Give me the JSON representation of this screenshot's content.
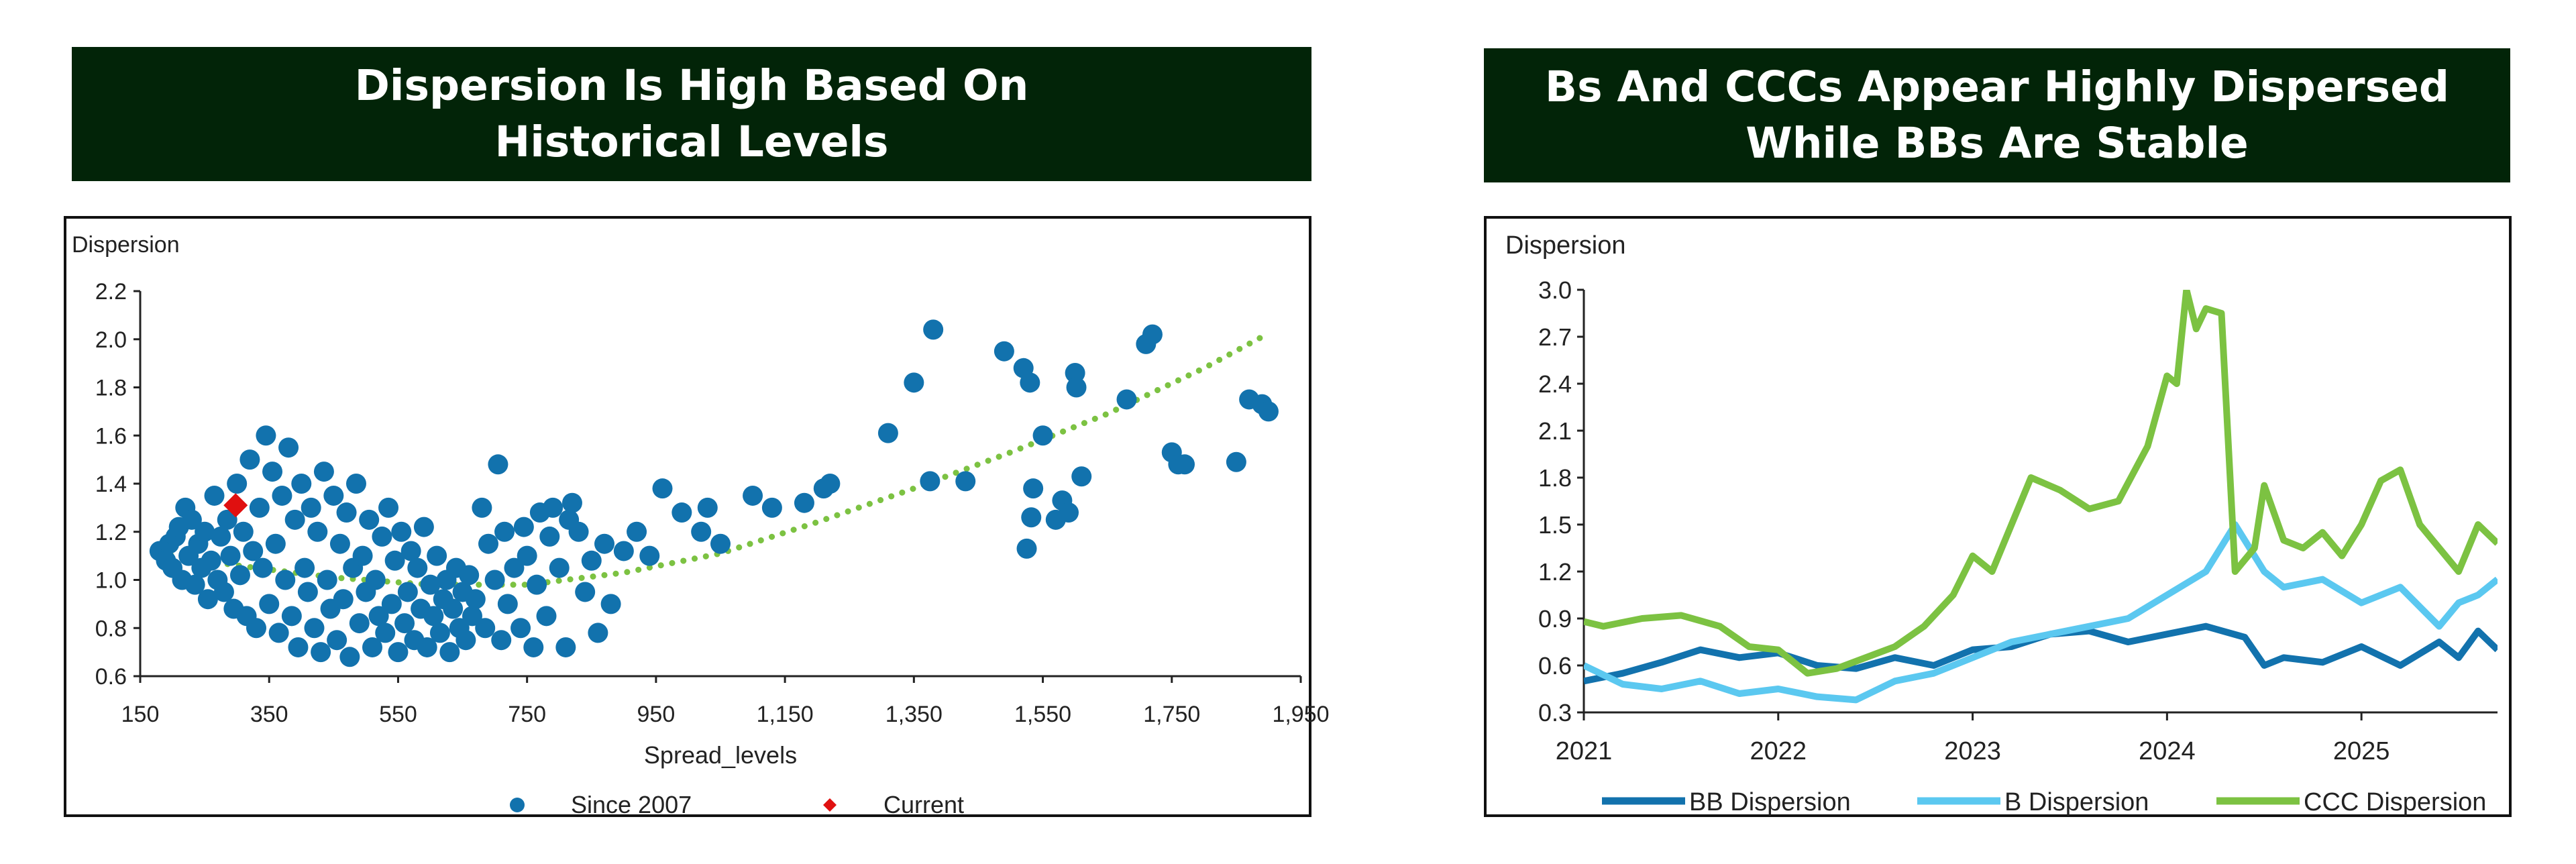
{
  "left_title": {
    "line1": "Dispersion Is High Based On",
    "line2": "Historical Levels"
  },
  "right_title": {
    "line1": "Bs And CCCs Appear Highly Dispersed",
    "line2": "While BBs Are Stable"
  },
  "colors": {
    "banner": "#022408",
    "scatter": "#1272ad",
    "current": "#e01010",
    "trend": "#7cc242",
    "bb": "#1272ad",
    "b": "#5bc8f0",
    "ccc": "#7cc242"
  },
  "chart_data": [
    {
      "type": "scatter",
      "title": "Dispersion Is High Based On Historical Levels",
      "ylabel": "Dispersion",
      "xlabel": "Spread_levels",
      "xlim": [
        150,
        1950
      ],
      "ylim": [
        0.6,
        2.2
      ],
      "xticks": [
        "150",
        "350",
        "550",
        "750",
        "950",
        "1,150",
        "1,350",
        "1,550",
        "1,750",
        "1,950"
      ],
      "yticks": [
        "0.6",
        "0.8",
        "1.0",
        "1.2",
        "1.4",
        "1.6",
        "1.8",
        "2.0",
        "2.2"
      ],
      "legend": [
        "Since 2007",
        "Current"
      ],
      "series": [
        {
          "name": "Since 2007",
          "points": [
            [
              180,
              1.12
            ],
            [
              190,
              1.08
            ],
            [
              195,
              1.15
            ],
            [
              200,
              1.05
            ],
            [
              205,
              1.18
            ],
            [
              210,
              1.22
            ],
            [
              215,
              1.0
            ],
            [
              220,
              1.3
            ],
            [
              225,
              1.1
            ],
            [
              230,
              1.25
            ],
            [
              235,
              0.98
            ],
            [
              240,
              1.15
            ],
            [
              245,
              1.05
            ],
            [
              250,
              1.2
            ],
            [
              255,
              0.92
            ],
            [
              260,
              1.08
            ],
            [
              265,
              1.35
            ],
            [
              270,
              1.0
            ],
            [
              275,
              1.18
            ],
            [
              280,
              0.95
            ],
            [
              285,
              1.25
            ],
            [
              290,
              1.1
            ],
            [
              295,
              0.88
            ],
            [
              300,
              1.4
            ],
            [
              305,
              1.02
            ],
            [
              310,
              1.2
            ],
            [
              315,
              0.85
            ],
            [
              320,
              1.5
            ],
            [
              325,
              1.12
            ],
            [
              330,
              0.8
            ],
            [
              335,
              1.3
            ],
            [
              340,
              1.05
            ],
            [
              345,
              1.6
            ],
            [
              350,
              0.9
            ],
            [
              355,
              1.45
            ],
            [
              360,
              1.15
            ],
            [
              365,
              0.78
            ],
            [
              370,
              1.35
            ],
            [
              375,
              1.0
            ],
            [
              380,
              1.55
            ],
            [
              385,
              0.85
            ],
            [
              390,
              1.25
            ],
            [
              395,
              0.72
            ],
            [
              400,
              1.4
            ],
            [
              405,
              1.05
            ],
            [
              410,
              0.95
            ],
            [
              415,
              1.3
            ],
            [
              420,
              0.8
            ],
            [
              425,
              1.2
            ],
            [
              430,
              0.7
            ],
            [
              435,
              1.45
            ],
            [
              440,
              1.0
            ],
            [
              445,
              0.88
            ],
            [
              450,
              1.35
            ],
            [
              455,
              0.75
            ],
            [
              460,
              1.15
            ],
            [
              465,
              0.92
            ],
            [
              470,
              1.28
            ],
            [
              475,
              0.68
            ],
            [
              480,
              1.05
            ],
            [
              485,
              1.4
            ],
            [
              490,
              0.82
            ],
            [
              495,
              1.1
            ],
            [
              500,
              0.95
            ],
            [
              505,
              1.25
            ],
            [
              510,
              0.72
            ],
            [
              515,
              1.0
            ],
            [
              520,
              0.85
            ],
            [
              525,
              1.18
            ],
            [
              530,
              0.78
            ],
            [
              535,
              1.3
            ],
            [
              540,
              0.9
            ],
            [
              545,
              1.08
            ],
            [
              550,
              0.7
            ],
            [
              555,
              1.2
            ],
            [
              560,
              0.82
            ],
            [
              565,
              0.95
            ],
            [
              570,
              1.12
            ],
            [
              575,
              0.75
            ],
            [
              580,
              1.05
            ],
            [
              585,
              0.88
            ],
            [
              590,
              1.22
            ],
            [
              595,
              0.72
            ],
            [
              600,
              0.98
            ],
            [
              605,
              0.85
            ],
            [
              610,
              1.1
            ],
            [
              615,
              0.78
            ],
            [
              620,
              0.92
            ],
            [
              625,
              1.0
            ],
            [
              630,
              0.7
            ],
            [
              635,
              0.88
            ],
            [
              640,
              1.05
            ],
            [
              645,
              0.8
            ],
            [
              650,
              0.95
            ],
            [
              655,
              0.75
            ],
            [
              660,
              1.02
            ],
            [
              665,
              0.85
            ],
            [
              670,
              0.92
            ],
            [
              680,
              1.3
            ],
            [
              685,
              0.8
            ],
            [
              690,
              1.15
            ],
            [
              700,
              1.0
            ],
            [
              705,
              1.48
            ],
            [
              710,
              0.75
            ],
            [
              715,
              1.2
            ],
            [
              720,
              0.9
            ],
            [
              730,
              1.05
            ],
            [
              740,
              0.8
            ],
            [
              745,
              1.22
            ],
            [
              750,
              1.1
            ],
            [
              760,
              0.72
            ],
            [
              765,
              0.98
            ],
            [
              770,
              1.28
            ],
            [
              780,
              0.85
            ],
            [
              785,
              1.18
            ],
            [
              790,
              1.3
            ],
            [
              800,
              1.05
            ],
            [
              810,
              0.72
            ],
            [
              815,
              1.25
            ],
            [
              820,
              1.32
            ],
            [
              830,
              1.2
            ],
            [
              840,
              0.95
            ],
            [
              850,
              1.08
            ],
            [
              860,
              0.78
            ],
            [
              870,
              1.15
            ],
            [
              880,
              0.9
            ],
            [
              900,
              1.12
            ],
            [
              920,
              1.2
            ],
            [
              940,
              1.1
            ],
            [
              960,
              1.38
            ],
            [
              990,
              1.28
            ],
            [
              1020,
              1.2
            ],
            [
              1030,
              1.3
            ],
            [
              1050,
              1.15
            ],
            [
              1100,
              1.35
            ],
            [
              1130,
              1.3
            ],
            [
              1180,
              1.32
            ],
            [
              1210,
              1.38
            ],
            [
              1220,
              1.4
            ],
            [
              1310,
              1.61
            ],
            [
              1350,
              1.82
            ],
            [
              1375,
              1.41
            ],
            [
              1380,
              2.04
            ],
            [
              1430,
              1.41
            ],
            [
              1490,
              1.95
            ],
            [
              1520,
              1.88
            ],
            [
              1525,
              1.13
            ],
            [
              1530,
              1.82
            ],
            [
              1532,
              1.26
            ],
            [
              1535,
              1.38
            ],
            [
              1550,
              1.6
            ],
            [
              1570,
              1.25
            ],
            [
              1580,
              1.33
            ],
            [
              1590,
              1.28
            ],
            [
              1600,
              1.86
            ],
            [
              1602,
              1.8
            ],
            [
              1610,
              1.43
            ],
            [
              1680,
              1.75
            ],
            [
              1710,
              1.98
            ],
            [
              1720,
              2.02
            ],
            [
              1750,
              1.53
            ],
            [
              1760,
              1.48
            ],
            [
              1770,
              1.48
            ],
            [
              1850,
              1.49
            ],
            [
              1870,
              1.75
            ],
            [
              1890,
              1.73
            ],
            [
              1900,
              1.7
            ]
          ]
        },
        {
          "name": "Current",
          "points": [
            [
              298,
              1.31
            ]
          ]
        }
      ],
      "trend": {
        "name": "Trend",
        "style": "dotted",
        "points": [
          [
            180,
            1.11
          ],
          [
            300,
            1.06
          ],
          [
            450,
            1.01
          ],
          [
            600,
            0.98
          ],
          [
            750,
            0.98
          ],
          [
            900,
            1.03
          ],
          [
            1050,
            1.11
          ],
          [
            1200,
            1.24
          ],
          [
            1350,
            1.38
          ],
          [
            1500,
            1.53
          ],
          [
            1650,
            1.69
          ],
          [
            1800,
            1.88
          ],
          [
            1890,
            2.01
          ]
        ]
      }
    },
    {
      "type": "line",
      "title": "Bs And CCCs Appear Highly Dispersed While BBs Are Stable",
      "ylabel": "Dispersion",
      "xlim": [
        2021.0,
        2025.7
      ],
      "ylim": [
        0.3,
        3.0
      ],
      "xticks": [
        "2021",
        "2022",
        "2023",
        "2024",
        "2025"
      ],
      "yticks": [
        "0.3",
        "0.6",
        "0.9",
        "1.2",
        "1.5",
        "1.8",
        "2.1",
        "2.4",
        "2.7",
        "3.0"
      ],
      "series": [
        {
          "name": "BB Dispersion",
          "x": [
            2021.0,
            2021.2,
            2021.4,
            2021.6,
            2021.8,
            2022.0,
            2022.2,
            2022.4,
            2022.6,
            2022.8,
            2023.0,
            2023.2,
            2023.4,
            2023.6,
            2023.8,
            2024.0,
            2024.2,
            2024.4,
            2024.5,
            2024.6,
            2024.8,
            2025.0,
            2025.2,
            2025.4,
            2025.5,
            2025.6,
            2025.7
          ],
          "values": [
            0.5,
            0.55,
            0.62,
            0.7,
            0.65,
            0.68,
            0.6,
            0.58,
            0.65,
            0.6,
            0.7,
            0.72,
            0.8,
            0.82,
            0.75,
            0.8,
            0.85,
            0.78,
            0.6,
            0.65,
            0.62,
            0.72,
            0.6,
            0.75,
            0.65,
            0.82,
            0.7
          ]
        },
        {
          "name": "B Dispersion",
          "x": [
            2021.0,
            2021.2,
            2021.4,
            2021.6,
            2021.8,
            2022.0,
            2022.2,
            2022.4,
            2022.6,
            2022.8,
            2023.0,
            2023.2,
            2023.4,
            2023.6,
            2023.8,
            2024.0,
            2024.2,
            2024.35,
            2024.5,
            2024.6,
            2024.8,
            2025.0,
            2025.2,
            2025.4,
            2025.5,
            2025.6,
            2025.7
          ],
          "values": [
            0.6,
            0.48,
            0.45,
            0.5,
            0.42,
            0.45,
            0.4,
            0.38,
            0.5,
            0.55,
            0.65,
            0.75,
            0.8,
            0.85,
            0.9,
            1.05,
            1.2,
            1.5,
            1.2,
            1.1,
            1.15,
            1.0,
            1.1,
            0.85,
            1.0,
            1.05,
            1.15
          ]
        },
        {
          "name": "CCC Dispersion",
          "x": [
            2021.0,
            2021.1,
            2021.3,
            2021.5,
            2021.7,
            2021.85,
            2022.0,
            2022.15,
            2022.3,
            2022.45,
            2022.6,
            2022.75,
            2022.9,
            2023.0,
            2023.1,
            2023.2,
            2023.3,
            2023.45,
            2023.6,
            2023.75,
            2023.9,
            2024.0,
            2024.05,
            2024.1,
            2024.15,
            2024.2,
            2024.28,
            2024.35,
            2024.45,
            2024.5,
            2024.6,
            2024.7,
            2024.8,
            2024.9,
            2025.0,
            2025.1,
            2025.2,
            2025.3,
            2025.4,
            2025.5,
            2025.6,
            2025.7
          ],
          "values": [
            0.88,
            0.85,
            0.9,
            0.92,
            0.85,
            0.72,
            0.7,
            0.55,
            0.58,
            0.65,
            0.72,
            0.85,
            1.05,
            1.3,
            1.2,
            1.5,
            1.8,
            1.72,
            1.6,
            1.65,
            2.0,
            2.45,
            2.4,
            3.0,
            2.75,
            2.88,
            2.85,
            1.2,
            1.35,
            1.75,
            1.4,
            1.35,
            1.45,
            1.3,
            1.5,
            1.78,
            1.85,
            1.5,
            1.35,
            1.2,
            1.5,
            1.38
          ]
        }
      ]
    }
  ]
}
